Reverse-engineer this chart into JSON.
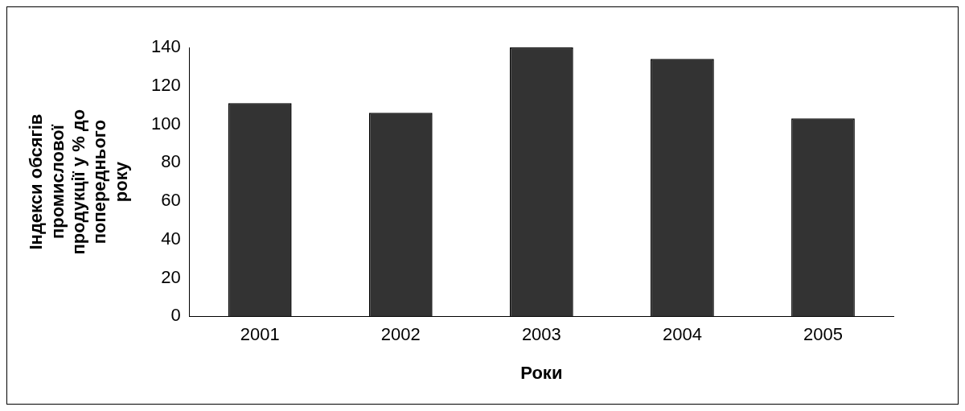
{
  "chart_data": {
    "type": "bar",
    "xlabel": "Роки",
    "ylabel": "Індекси обсягів промислової продукції у % до попереднього року",
    "categories": [
      "2001",
      "2002",
      "2003",
      "2004",
      "2005"
    ],
    "values": [
      111,
      106,
      140,
      134,
      103
    ],
    "color": "#333333",
    "ylim": [
      0,
      140
    ],
    "yticks": [
      0,
      20,
      40,
      60,
      80,
      100,
      120,
      140
    ],
    "grid": false,
    "legend": false
  }
}
